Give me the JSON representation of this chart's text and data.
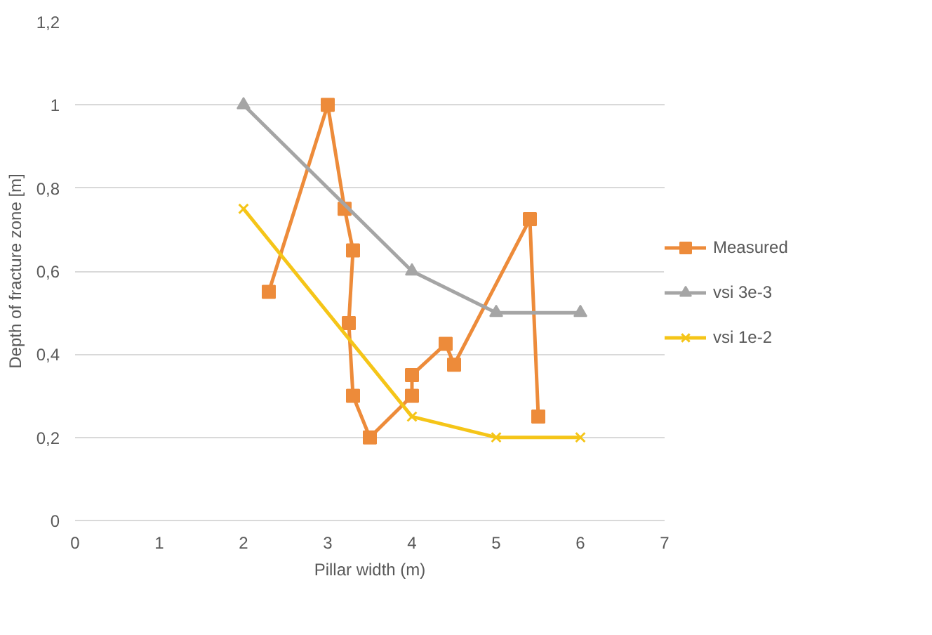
{
  "chart_data": {
    "type": "line",
    "xlabel": "Pillar width (m)",
    "ylabel": "Depth of fracture zone [m]",
    "xlim": [
      0,
      7
    ],
    "xticks": [
      0,
      1,
      2,
      3,
      4,
      5,
      6,
      7
    ],
    "ylim": [
      0,
      1.2
    ],
    "yticks": [
      0,
      {
        "value": 0.2,
        "label": "0,2"
      },
      {
        "value": 0.4,
        "label": "0,4"
      },
      {
        "value": 0.6,
        "label": "0,6"
      },
      {
        "value": 0.8,
        "label": "0,8"
      },
      1,
      {
        "value": 1.2,
        "label": "1,2"
      }
    ],
    "grid": "y",
    "legend": "right",
    "line_style": "solid",
    "series": [
      {
        "name": "Measured",
        "color": "#ed8b3a",
        "marker": "square",
        "x": [
          2.3,
          3,
          3.2,
          3.3,
          3.25,
          3.3,
          3.5,
          4,
          4,
          4.4,
          4.5,
          5.4,
          5.5
        ],
        "values": [
          0.55,
          1.0,
          0.75,
          0.65,
          0.475,
          0.3,
          0.2,
          0.3,
          0.35,
          0.425,
          0.375,
          0.725,
          0.25
        ]
      },
      {
        "name": "vsi 3e-3",
        "color": "#a5a5a5",
        "marker": "triangle",
        "x": [
          2,
          4,
          5,
          6
        ],
        "values": [
          1.0,
          0.6,
          0.5,
          0.5
        ]
      },
      {
        "name": "vsi 1e-2",
        "color": "#f5c518",
        "marker": "cross",
        "x": [
          2,
          4,
          5,
          6
        ],
        "values": [
          0.75,
          0.25,
          0.2,
          0.2
        ]
      }
    ]
  }
}
